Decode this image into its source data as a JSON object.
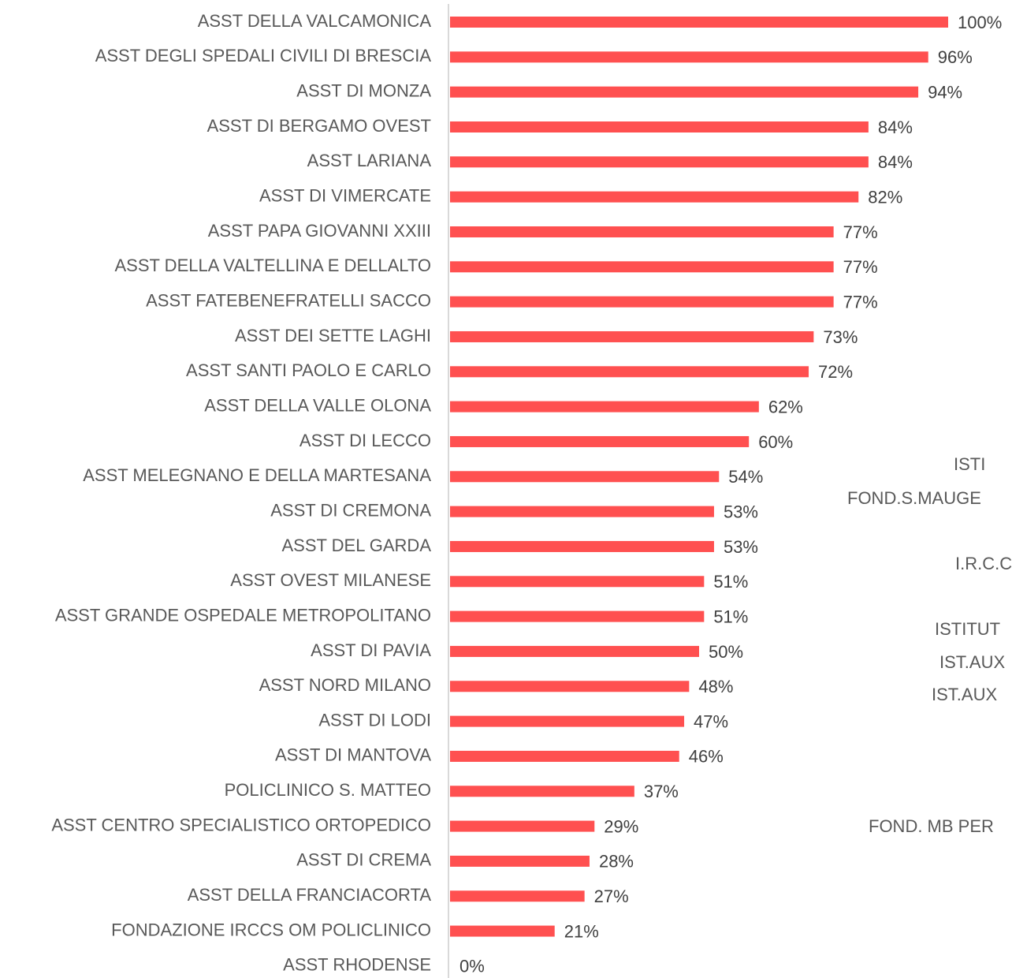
{
  "chart_data": {
    "type": "barh",
    "categories": [
      "ASST DELLA VALCAMONICA",
      "ASST DEGLI SPEDALI CIVILI DI BRESCIA",
      "ASST DI MONZA",
      "ASST DI BERGAMO OVEST",
      "ASST LARIANA",
      "ASST DI VIMERCATE",
      "ASST PAPA GIOVANNI XXIII",
      "ASST DELLA VALTELLINA E DELLALTO",
      "ASST FATEBENEFRATELLI SACCO",
      "ASST DEI SETTE LAGHI",
      "ASST SANTI PAOLO E CARLO",
      "ASST DELLA VALLE OLONA",
      "ASST DI LECCO",
      "ASST MELEGNANO E DELLA MARTESANA",
      "ASST DI CREMONA",
      "ASST DEL GARDA",
      "ASST OVEST MILANESE",
      "ASST GRANDE OSPEDALE METROPOLITANO",
      "ASST DI PAVIA",
      "ASST NORD MILANO",
      "ASST DI LODI",
      "ASST DI MANTOVA",
      "POLICLINICO S. MATTEO",
      "ASST CENTRO SPECIALISTICO ORTOPEDICO",
      "ASST DI CREMA",
      "ASST DELLA FRANCIACORTA",
      "FONDAZIONE IRCCS OM POLICLINICO",
      "ASST RHODENSE"
    ],
    "values": [
      100,
      96,
      94,
      84,
      84,
      82,
      77,
      77,
      77,
      73,
      72,
      62,
      60,
      54,
      53,
      53,
      51,
      51,
      50,
      48,
      47,
      46,
      37,
      29,
      28,
      27,
      21,
      0
    ],
    "value_labels": [
      "100%",
      "96%",
      "94%",
      "84%",
      "84%",
      "82%",
      "77%",
      "77%",
      "77%",
      "73%",
      "72%",
      "62%",
      "60%",
      "54%",
      "53%",
      "53%",
      "51%",
      "51%",
      "50%",
      "48%",
      "47%",
      "46%",
      "37%",
      "29%",
      "28%",
      "27%",
      "21%",
      "0%"
    ],
    "color": "#ff5050",
    "xlim": [
      0,
      100
    ],
    "annotations": [
      "ISTI",
      "FOND.S.MAUGE",
      "I.R.C.C",
      "ISTITUT",
      "IST.AUX",
      "IST.AUX",
      "FOND. MB PER"
    ]
  }
}
